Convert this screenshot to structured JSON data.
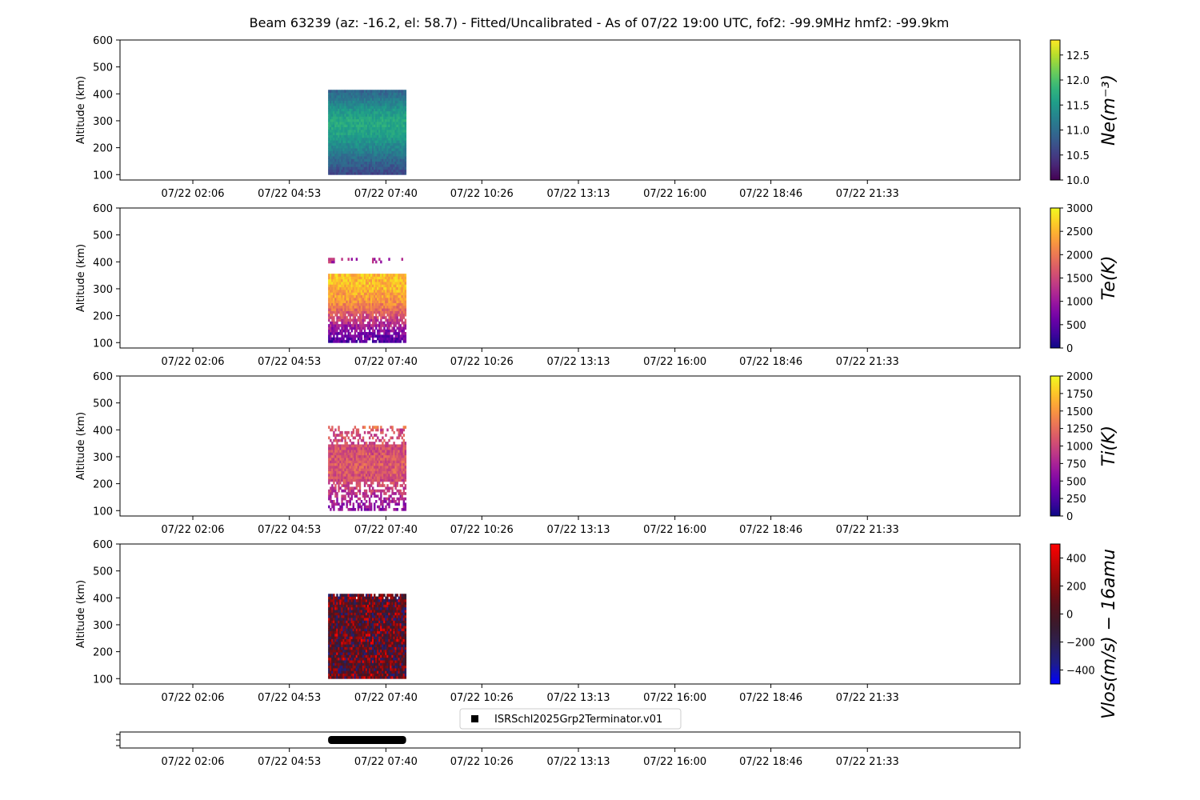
{
  "figure": {
    "title": "Beam 63239 (az: -16.2, el: 58.7) - Fitted/Uncalibrated - As of 07/22 19:00 UTC, fof2: -99.9MHz  hmf2: -99.9km"
  },
  "legend": {
    "label": "ISRSchl2025Grp2Terminator.v01",
    "marker_color": "#000000"
  },
  "chart_data": [
    {
      "type": "heatmap",
      "name": "Ne",
      "colorbar_label": "Ne(m⁻³)",
      "colormap": "viridis",
      "clim": [
        10.0,
        12.8
      ],
      "colorbar_ticks": [
        "10.0",
        "10.5",
        "11.0",
        "11.5",
        "12.0",
        "12.5"
      ],
      "colorbar_tick_values": [
        10.0,
        10.5,
        11.0,
        11.5,
        12.0,
        12.5
      ],
      "ylabel": "Altitude (km)",
      "ylim": [
        80,
        600
      ],
      "yticks": [
        100,
        200,
        300,
        400,
        500,
        600
      ],
      "xlim_hours": [
        0.0,
        25.95
      ],
      "xticks": [
        "07/22 02:06",
        "07/22 04:53",
        "07/22 07:40",
        "07/22 10:26",
        "07/22 13:13",
        "07/22 16:00",
        "07/22 18:46",
        "07/22 21:33"
      ],
      "xtick_hours": [
        2.1,
        4.883,
        7.667,
        10.433,
        13.217,
        16.0,
        18.767,
        21.55
      ],
      "data_time_range_hours": [
        6.0,
        8.25
      ],
      "data_alt_range_km": [
        100,
        415
      ],
      "altitude_profile": [
        [
          100,
          10.6
        ],
        [
          150,
          10.9
        ],
        [
          200,
          11.3
        ],
        [
          250,
          11.6
        ],
        [
          300,
          11.7
        ],
        [
          350,
          11.4
        ],
        [
          400,
          11.0
        ],
        [
          415,
          10.9
        ]
      ]
    },
    {
      "type": "heatmap",
      "name": "Te",
      "colorbar_label": "Te(K)",
      "colormap": "plasma",
      "clim": [
        0,
        3000
      ],
      "colorbar_ticks": [
        "0",
        "500",
        "1000",
        "1500",
        "2000",
        "2500",
        "3000"
      ],
      "colorbar_tick_values": [
        0,
        500,
        1000,
        1500,
        2000,
        2500,
        3000
      ],
      "ylabel": "Altitude (km)",
      "ylim": [
        80,
        600
      ],
      "yticks": [
        100,
        200,
        300,
        400,
        500,
        600
      ],
      "xlim_hours": [
        0.0,
        25.95
      ],
      "xticks": [
        "07/22 02:06",
        "07/22 04:53",
        "07/22 07:40",
        "07/22 10:26",
        "07/22 13:13",
        "07/22 16:00",
        "07/22 18:46",
        "07/22 21:33"
      ],
      "xtick_hours": [
        2.1,
        4.883,
        7.667,
        10.433,
        13.217,
        16.0,
        18.767,
        21.55
      ],
      "data_time_range_hours": [
        6.0,
        8.25
      ],
      "data_alt_range_km": [
        100,
        415
      ],
      "altitude_profile": [
        [
          100,
          400
        ],
        [
          150,
          900
        ],
        [
          200,
          1600
        ],
        [
          250,
          2200
        ],
        [
          300,
          2500
        ],
        [
          350,
          2600
        ],
        [
          400,
          1200
        ],
        [
          415,
          1200
        ]
      ]
    },
    {
      "type": "heatmap",
      "name": "Ti",
      "colorbar_label": "Ti(K)",
      "colormap": "plasma",
      "clim": [
        0,
        2000
      ],
      "colorbar_ticks": [
        "0",
        "250",
        "500",
        "750",
        "1000",
        "1250",
        "1500",
        "1750",
        "2000"
      ],
      "colorbar_tick_values": [
        0,
        250,
        500,
        750,
        1000,
        1250,
        1500,
        1750,
        2000
      ],
      "ylabel": "Altitude (km)",
      "ylim": [
        80,
        600
      ],
      "yticks": [
        100,
        200,
        300,
        400,
        500,
        600
      ],
      "xlim_hours": [
        0.0,
        25.95
      ],
      "xticks": [
        "07/22 02:06",
        "07/22 04:53",
        "07/22 07:40",
        "07/22 10:26",
        "07/22 13:13",
        "07/22 16:00",
        "07/22 18:46",
        "07/22 21:33"
      ],
      "xtick_hours": [
        2.1,
        4.883,
        7.667,
        10.433,
        13.217,
        16.0,
        18.767,
        21.55
      ],
      "data_time_range_hours": [
        6.0,
        8.25
      ],
      "data_alt_range_km": [
        100,
        415
      ],
      "altitude_profile": [
        [
          100,
          550
        ],
        [
          150,
          800
        ],
        [
          200,
          1000
        ],
        [
          250,
          1150
        ],
        [
          300,
          1100
        ],
        [
          350,
          1050
        ],
        [
          400,
          1000
        ],
        [
          415,
          1400
        ]
      ]
    },
    {
      "type": "heatmap",
      "name": "Vlos",
      "colorbar_label": "Vlos(m/s) − 16amu",
      "colormap": "bwr-dark",
      "clim": [
        -500,
        500
      ],
      "colorbar_ticks": [
        "−400",
        "−200",
        "0",
        "200",
        "400"
      ],
      "colorbar_tick_values": [
        -400,
        -200,
        0,
        200,
        400
      ],
      "ylabel": "Altitude (km)",
      "ylim": [
        80,
        600
      ],
      "yticks": [
        100,
        200,
        300,
        400,
        500,
        600
      ],
      "xlim_hours": [
        0.0,
        25.95
      ],
      "xticks": [
        "07/22 02:06",
        "07/22 04:53",
        "07/22 07:40",
        "07/22 10:26",
        "07/22 13:13",
        "07/22 16:00",
        "07/22 18:46",
        "07/22 21:33"
      ],
      "xtick_hours": [
        2.1,
        4.883,
        7.667,
        10.433,
        13.217,
        16.0,
        18.767,
        21.55
      ],
      "data_time_range_hours": [
        6.0,
        8.25
      ],
      "data_alt_range_km": [
        100,
        415
      ],
      "altitude_profile": [
        [
          100,
          50
        ],
        [
          200,
          50
        ],
        [
          300,
          0
        ],
        [
          400,
          0
        ],
        [
          415,
          100
        ]
      ]
    },
    {
      "type": "bar",
      "name": "experiment-timeline",
      "xlim_hours": [
        0.0,
        25.95
      ],
      "xticks": [
        "07/22 02:06",
        "07/22 04:53",
        "07/22 07:40",
        "07/22 10:26",
        "07/22 13:13",
        "07/22 16:00",
        "07/22 18:46",
        "07/22 21:33"
      ],
      "xtick_hours": [
        2.1,
        4.883,
        7.667,
        10.433,
        13.217,
        16.0,
        18.767,
        21.55
      ],
      "spans": [
        {
          "label": "ISRSchl2025Grp2Terminator.v01",
          "start_hours": 6.0,
          "end_hours": 8.25
        }
      ]
    }
  ]
}
